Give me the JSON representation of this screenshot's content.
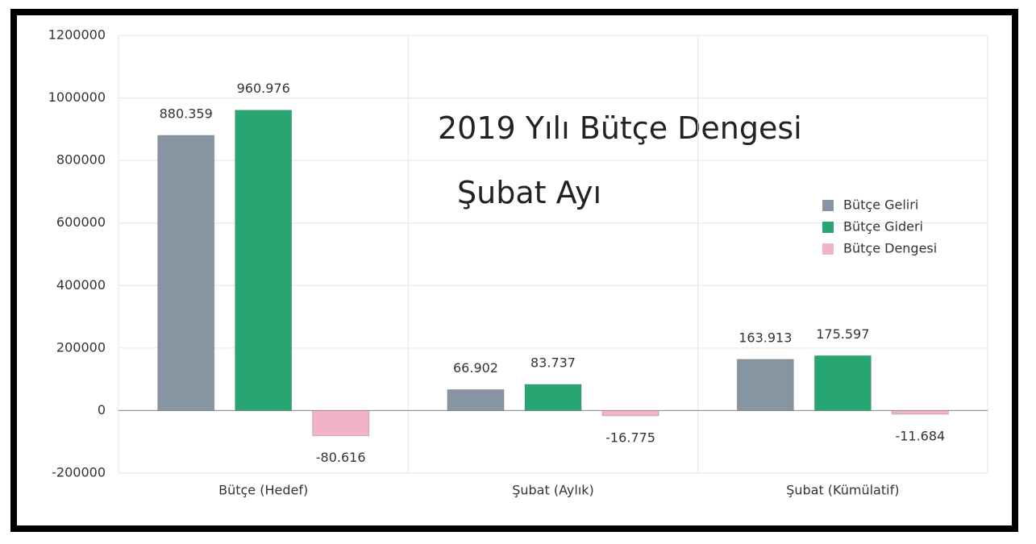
{
  "chart_data": {
    "type": "bar",
    "title": "2019 Yılı Bütçe Dengesi",
    "subtitle": "Şubat Ayı",
    "categories": [
      "Bütçe (Hedef)",
      "Şubat (Aylık)",
      "Şubat (Kümülatif)"
    ],
    "series": [
      {
        "name": "Bütçe Geliri",
        "color": "#8794a2",
        "values": [
          880359,
          66902,
          163913
        ],
        "value_labels": [
          "880.359",
          "66.902",
          "163.913"
        ]
      },
      {
        "name": "Bütçe Gideri",
        "color": "#27a673",
        "values": [
          960976,
          83737,
          175597
        ],
        "value_labels": [
          "960.976",
          "83.737",
          "175.597"
        ]
      },
      {
        "name": "Bütçe Dengesi",
        "color": "#f3b3c7",
        "values": [
          -80616,
          -16775,
          -11684
        ],
        "value_labels": [
          "-80.616",
          "-16.775",
          "-11.684"
        ]
      }
    ],
    "ylim": [
      -200000,
      1200000
    ],
    "yticks": [
      -200000,
      0,
      200000,
      400000,
      600000,
      800000,
      1000000,
      1200000
    ],
    "grid": true,
    "legend": "right"
  }
}
